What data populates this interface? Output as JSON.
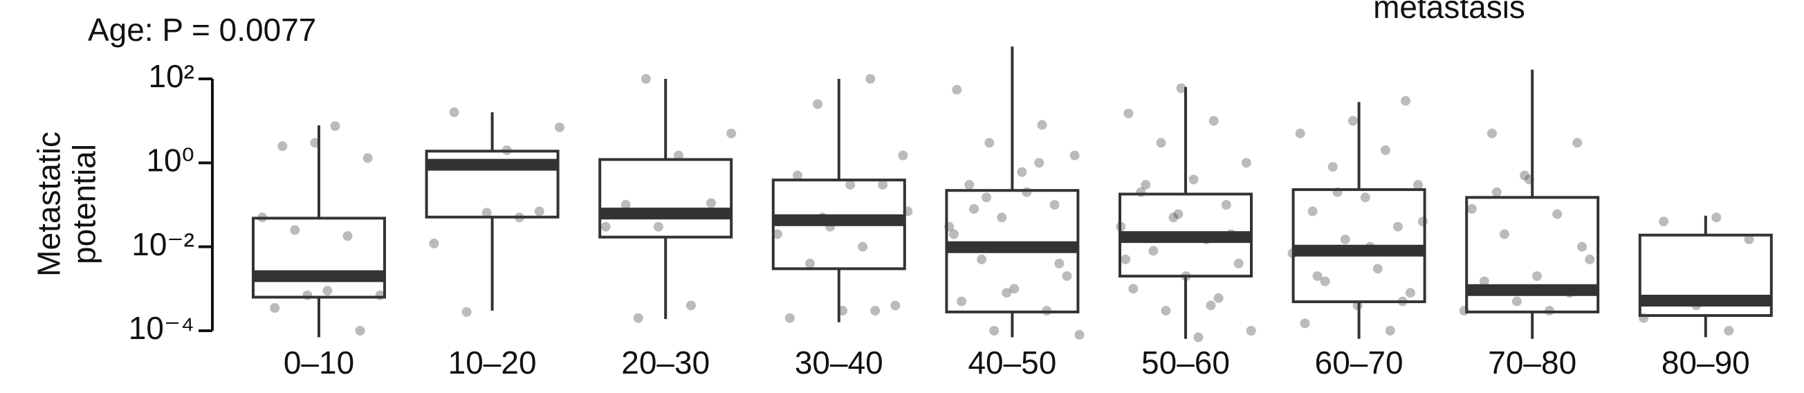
{
  "chart_data": {
    "type": "box",
    "title": "Age: P = 0.0077",
    "subtitle": "metastasis",
    "y_label": "Metastatic potential",
    "log_scale": true,
    "ylim": [
      0.0001,
      100
    ],
    "yticks": [
      {
        "value": 0.0001,
        "label": "10⁻⁴"
      },
      {
        "value": 0.01,
        "label": "10⁻²"
      },
      {
        "value": 1,
        "label": "10⁰"
      },
      {
        "value": 100,
        "label": "10²"
      }
    ],
    "box_color": "#333333",
    "point_color": "rgba(60,60,60,0.35)",
    "categories": [
      "0–10",
      "10–20",
      "20–30",
      "30–40",
      "40–50",
      "50–60",
      "60–70",
      "70–80",
      "80–90"
    ],
    "boxes": [
      {
        "whislo": 7e-05,
        "q1": 0.00063,
        "med": 0.002,
        "q3": 0.048,
        "whishi": 7.8
      },
      {
        "whislo": 0.0003,
        "q1": 0.051,
        "med": 0.9,
        "q3": 1.9,
        "whishi": 16
      },
      {
        "whislo": 0.00019,
        "q1": 0.017,
        "med": 0.062,
        "q3": 1.2,
        "whishi": 100
      },
      {
        "whislo": 0.00016,
        "q1": 0.003,
        "med": 0.043,
        "q3": 0.39,
        "whishi": 100
      },
      {
        "whislo": 7e-05,
        "q1": 0.00028,
        "med": 0.0098,
        "q3": 0.22,
        "whishi": 590
      },
      {
        "whislo": 6.4e-05,
        "q1": 0.002,
        "med": 0.017,
        "q3": 0.18,
        "whishi": 64
      },
      {
        "whislo": 6.4e-05,
        "q1": 0.00049,
        "med": 0.0081,
        "q3": 0.23,
        "whishi": 28
      },
      {
        "whislo": 6.4e-05,
        "q1": 0.00028,
        "med": 0.00093,
        "q3": 0.15,
        "whishi": 166
      },
      {
        "whislo": 7e-05,
        "q1": 0.00023,
        "med": 0.00052,
        "q3": 0.019,
        "whishi": 0.055
      }
    ],
    "points": [
      [
        7.5,
        2.5,
        1.3,
        3,
        0.05,
        0.018,
        0.025,
        0.0007,
        0.0009,
        0.00035,
        0.0001,
        0.0007
      ],
      [
        7,
        2,
        16,
        0.07,
        0.065,
        0.012,
        0.05,
        0.00028
      ],
      [
        100,
        5,
        1.5,
        0.1,
        0.11,
        0.03,
        0.03,
        0.0004,
        0.0002
      ],
      [
        100,
        25,
        1.5,
        0.3,
        0.5,
        0.3,
        0.03,
        0.02,
        0.01,
        0.004,
        0.0004,
        0.0003,
        0.0002,
        0.0003,
        0.05,
        0.07
      ],
      [
        55,
        8,
        3,
        1.5,
        0.6,
        0.3,
        0.1,
        0.05,
        0.03,
        0.01,
        0.005,
        0.002,
        0.001,
        0.0005,
        0.0003,
        0.0001,
        8e-05,
        0.2,
        0.08,
        0.004,
        0.0008,
        0.02,
        1,
        0.15
      ],
      [
        60,
        15,
        10,
        3,
        1,
        0.4,
        0.2,
        0.1,
        0.05,
        0.03,
        0.015,
        0.008,
        0.004,
        0.002,
        0.001,
        0.0006,
        0.0003,
        0.0001,
        7e-05,
        0.3,
        0.02,
        0.06,
        0.005,
        0.0004
      ],
      [
        30,
        10,
        5,
        2,
        0.8,
        0.3,
        0.15,
        0.07,
        0.03,
        0.015,
        0.007,
        0.003,
        0.0015,
        0.0008,
        0.0004,
        0.00015,
        0.0001,
        0.2,
        0.04,
        0.01,
        0.002,
        0.0005
      ],
      [
        5,
        3,
        0.5,
        0.08,
        0.06,
        0.02,
        0.005,
        0.002,
        0.0015,
        0.0008,
        0.0005,
        0.0003,
        0.0003,
        0.2,
        0.01,
        0.4,
        0.001
      ],
      [
        0.05,
        0.04,
        0.015,
        0.0004,
        0.0002,
        0.0001
      ]
    ]
  }
}
